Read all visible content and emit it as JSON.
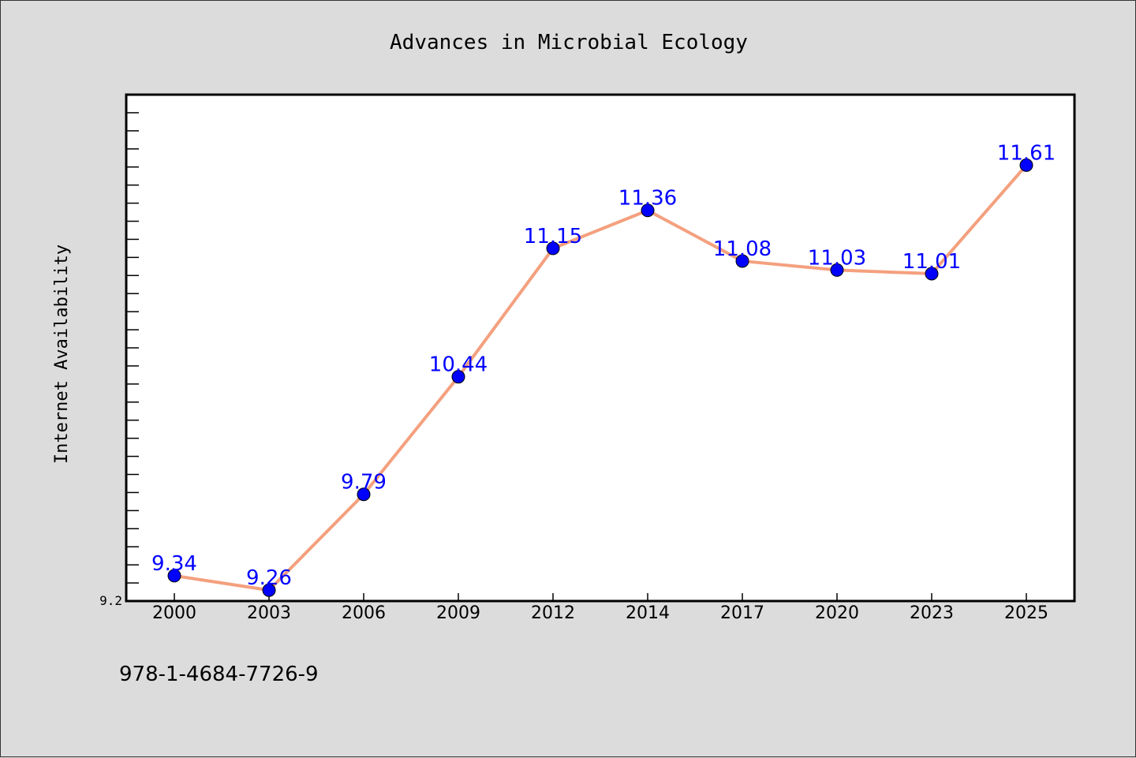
{
  "chart_data": {
    "type": "line",
    "title": "Advances in Microbial Ecology",
    "xlabel": "",
    "ylabel": "Internet Availability",
    "categories": [
      "2000",
      "2003",
      "2006",
      "2009",
      "2012",
      "2014",
      "2017",
      "2020",
      "2023",
      "2025"
    ],
    "series": [
      {
        "values": [
          9.34,
          9.26,
          9.79,
          10.44,
          11.15,
          11.36,
          11.08,
          11.03,
          11.01,
          11.61
        ],
        "labels": [
          "9.34",
          "9.26",
          "9.79",
          "10.44",
          "11.15",
          "11.36",
          "11.08",
          "11.03",
          "11.01",
          "11.61"
        ],
        "line_color": "#f4a07e",
        "marker_color": "#0000ff",
        "label_color": "#0000ff"
      }
    ],
    "ylim": [
      9.2,
      12.0
    ],
    "y_tick_labels": [
      "9.2"
    ],
    "grid": false,
    "legend": "none"
  },
  "footer": {
    "isbn": "978-1-4684-7726-9"
  },
  "colors": {
    "background": "#dcdcdc",
    "plot_background": "#ffffff",
    "axis": "#000000"
  }
}
